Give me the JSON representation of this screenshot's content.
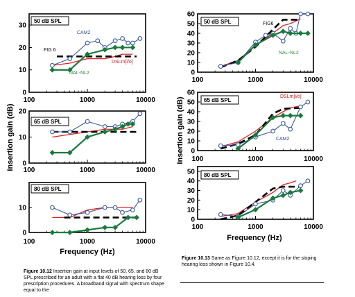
{
  "colors": {
    "nal": "#1a7a3c",
    "cam": "#3a5a9c",
    "dsl": "#e02020",
    "fig6": "#000000",
    "nal_label": "#2a8a3c",
    "cam_label": "#2a4a8c",
    "dsl_label": "#d01818"
  },
  "chart_data": [
    {
      "id": "fig12-50",
      "type": "line",
      "xscale": "log",
      "xlim": [
        100,
        10000
      ],
      "ylim": [
        0,
        35
      ],
      "yticks": [
        0,
        10,
        20,
        30
      ],
      "box_label": "50 dB SPL",
      "series": [
        {
          "name": "CAM2",
          "x": [
            250,
            500,
            1000,
            1500,
            2000,
            3000,
            4000,
            5000,
            6000,
            8000
          ],
          "y": [
            12,
            15,
            22,
            23,
            20,
            23,
            24,
            22,
            22,
            24
          ]
        },
        {
          "name": "NAL-NL2",
          "x": [
            250,
            500,
            1000,
            2000,
            3000,
            4000,
            6000
          ],
          "y": [
            10,
            10,
            17,
            19,
            20,
            20,
            20
          ]
        },
        {
          "name": "FIG6",
          "x": [
            300,
            2500,
            7000
          ],
          "y": [
            16,
            16,
            16
          ]
        },
        {
          "name": "DSLm[i/o]",
          "x": [
            250,
            500,
            1000,
            2000,
            3000,
            4000,
            6000
          ],
          "y": [
            12,
            13,
            15,
            15,
            16,
            17,
            17
          ]
        }
      ],
      "annotations": [
        "CAM2",
        "FIG 6",
        "DSLm[i/o]",
        "NAL-NL2"
      ]
    },
    {
      "id": "fig12-65",
      "type": "line",
      "xscale": "log",
      "xlim": [
        100,
        10000
      ],
      "ylim": [
        0,
        20
      ],
      "yticks": [
        0,
        10,
        20
      ],
      "box_label": "65 dB SPL",
      "series": [
        {
          "name": "CAM2",
          "x": [
            250,
            500,
            1000,
            2000,
            3000,
            4000,
            6000,
            8000
          ],
          "y": [
            12,
            12,
            16,
            14,
            14,
            15,
            16,
            19
          ]
        },
        {
          "name": "NAL-NL2",
          "x": [
            250,
            500,
            1000,
            2000,
            3000,
            4000,
            5000,
            6000
          ],
          "y": [
            4,
            4,
            10,
            12,
            13,
            14,
            15,
            15
          ]
        },
        {
          "name": "FIG6",
          "x": [
            250,
            3000,
            7000
          ],
          "y": [
            12,
            12,
            12
          ]
        },
        {
          "name": "DSLm[i/o]",
          "x": [
            250,
            500,
            1000,
            2000,
            3000,
            4000,
            6000
          ],
          "y": [
            10,
            11,
            12,
            13,
            13,
            13,
            14
          ]
        }
      ]
    },
    {
      "id": "fig12-80",
      "type": "line",
      "xscale": "log",
      "xlim": [
        100,
        10000
      ],
      "ylim": [
        0,
        20
      ],
      "yticks": [
        0,
        10
      ],
      "box_label": "80 dB SPL",
      "series": [
        {
          "name": "CAM2",
          "x": [
            250,
            500,
            1000,
            2000,
            3000,
            4000,
            6000,
            8000
          ],
          "y": [
            10,
            7,
            8,
            10,
            10,
            8,
            9,
            13
          ]
        },
        {
          "name": "NAL-NL2",
          "x": [
            250,
            500,
            1000,
            2000,
            3000,
            5000,
            7000
          ],
          "y": [
            0,
            0,
            1,
            2,
            2,
            6,
            6
          ]
        },
        {
          "name": "FIG6",
          "x": [
            400,
            2000,
            7000
          ],
          "y": [
            6,
            6,
            6
          ]
        },
        {
          "name": "DSLm[i/o]",
          "x": [
            250,
            500,
            1000,
            2000,
            3000,
            4000,
            6000
          ],
          "y": [
            6,
            6,
            9,
            10,
            10,
            10,
            10
          ]
        }
      ]
    },
    {
      "id": "fig13-50",
      "type": "line",
      "xscale": "log",
      "xlim": [
        100,
        10000
      ],
      "ylim": [
        0,
        60
      ],
      "yticks": [
        0,
        10,
        20,
        30,
        40,
        50,
        60
      ],
      "box_label": "50 dB SPL",
      "series": [
        {
          "name": "CAM2",
          "x": [
            250,
            500,
            1000,
            1500,
            2000,
            3000,
            4000,
            5000,
            6000,
            8000
          ],
          "y": [
            6,
            10,
            31,
            38,
            40,
            32,
            45,
            40,
            60,
            60
          ]
        },
        {
          "name": "NAL-NL2",
          "x": [
            500,
            1000,
            2000,
            3000,
            4000,
            6000,
            8000
          ],
          "y": [
            10,
            28,
            38,
            42,
            40,
            40,
            40
          ]
        },
        {
          "name": "FIG6",
          "x": [
            250,
            500,
            1000,
            2000,
            3000,
            6000
          ],
          "y": [
            5,
            12,
            26,
            44,
            54,
            54
          ]
        },
        {
          "name": "DSLm[i/o]",
          "x": [
            250,
            500,
            1000,
            2000,
            3000,
            4000,
            6000
          ],
          "y": [
            6,
            12,
            28,
            40,
            48,
            50,
            55
          ]
        }
      ],
      "annotations": [
        "FIG6",
        "NAL-NL2"
      ]
    },
    {
      "id": "fig13-65",
      "type": "line",
      "xscale": "log",
      "xlim": [
        100,
        10000
      ],
      "ylim": [
        0,
        60
      ],
      "yticks": [
        0,
        10,
        20,
        30,
        40,
        50,
        60
      ],
      "box_label": "65 dB SPL",
      "series": [
        {
          "name": "CAM2",
          "x": [
            250,
            500,
            1000,
            2000,
            3000,
            4000,
            6000,
            8000
          ],
          "y": [
            5,
            6,
            14,
            20,
            28,
            22,
            45,
            50
          ]
        },
        {
          "name": "NAL-NL2",
          "x": [
            500,
            1000,
            2000,
            3000,
            4000,
            6000
          ],
          "y": [
            2,
            16,
            34,
            36,
            36,
            36
          ]
        },
        {
          "name": "FIG6",
          "x": [
            250,
            500,
            1000,
            2000,
            3000,
            6000
          ],
          "y": [
            2,
            7,
            16,
            38,
            43,
            44
          ]
        },
        {
          "name": "DSLm[i/o]",
          "x": [
            250,
            500,
            1000,
            2000,
            3000,
            4000,
            6000
          ],
          "y": [
            4,
            9,
            20,
            34,
            40,
            44,
            46
          ]
        }
      ],
      "annotations": [
        "DSLm[i/o]",
        "CAM2"
      ]
    },
    {
      "id": "fig13-80",
      "type": "line",
      "xscale": "log",
      "xlim": [
        100,
        10000
      ],
      "ylim": [
        0,
        55
      ],
      "yticks": [
        0,
        10,
        20,
        30,
        40,
        50
      ],
      "box_label": "80 dB SPL",
      "series": [
        {
          "name": "CAM2",
          "x": [
            250,
            500,
            1000,
            2000,
            3000,
            4000,
            6000,
            8000
          ],
          "y": [
            5,
            3,
            16,
            20,
            30,
            25,
            35,
            40
          ]
        },
        {
          "name": "NAL-NL2",
          "x": [
            500,
            1000,
            2000,
            3000,
            4000,
            6000
          ],
          "y": [
            2,
            10,
            22,
            25,
            28,
            30
          ]
        },
        {
          "name": "FIG6",
          "x": [
            250,
            500,
            1000,
            2000,
            3000,
            6000
          ],
          "y": [
            0,
            4,
            18,
            32,
            34,
            34
          ]
        },
        {
          "name": "DSLm[i/o]",
          "x": [
            250,
            500,
            1000,
            2000,
            3000,
            4000,
            5000
          ],
          "y": [
            3,
            6,
            18,
            28,
            36,
            38,
            40
          ]
        }
      ]
    }
  ],
  "labels": {
    "y_axis": "Insertion gain (dB)",
    "x_axis": "Frequency (Hz)",
    "x_ticks": [
      "100",
      "1000",
      "10000"
    ]
  },
  "captions": {
    "fig12_label": "Figure 10.12",
    "fig12_text": "Insertion gain at input levels of 50, 65, and 80 dB SPL prescribed for an adult with a flat 40 dB hearing loss by four prescription procedures. A broadband signal with spectrum shape equal to the",
    "fig13_label": "Figure 10.13",
    "fig13_text": "Same as Figure 10.12, except it is for the sloping hearing loss shown in Figure 10.4."
  }
}
